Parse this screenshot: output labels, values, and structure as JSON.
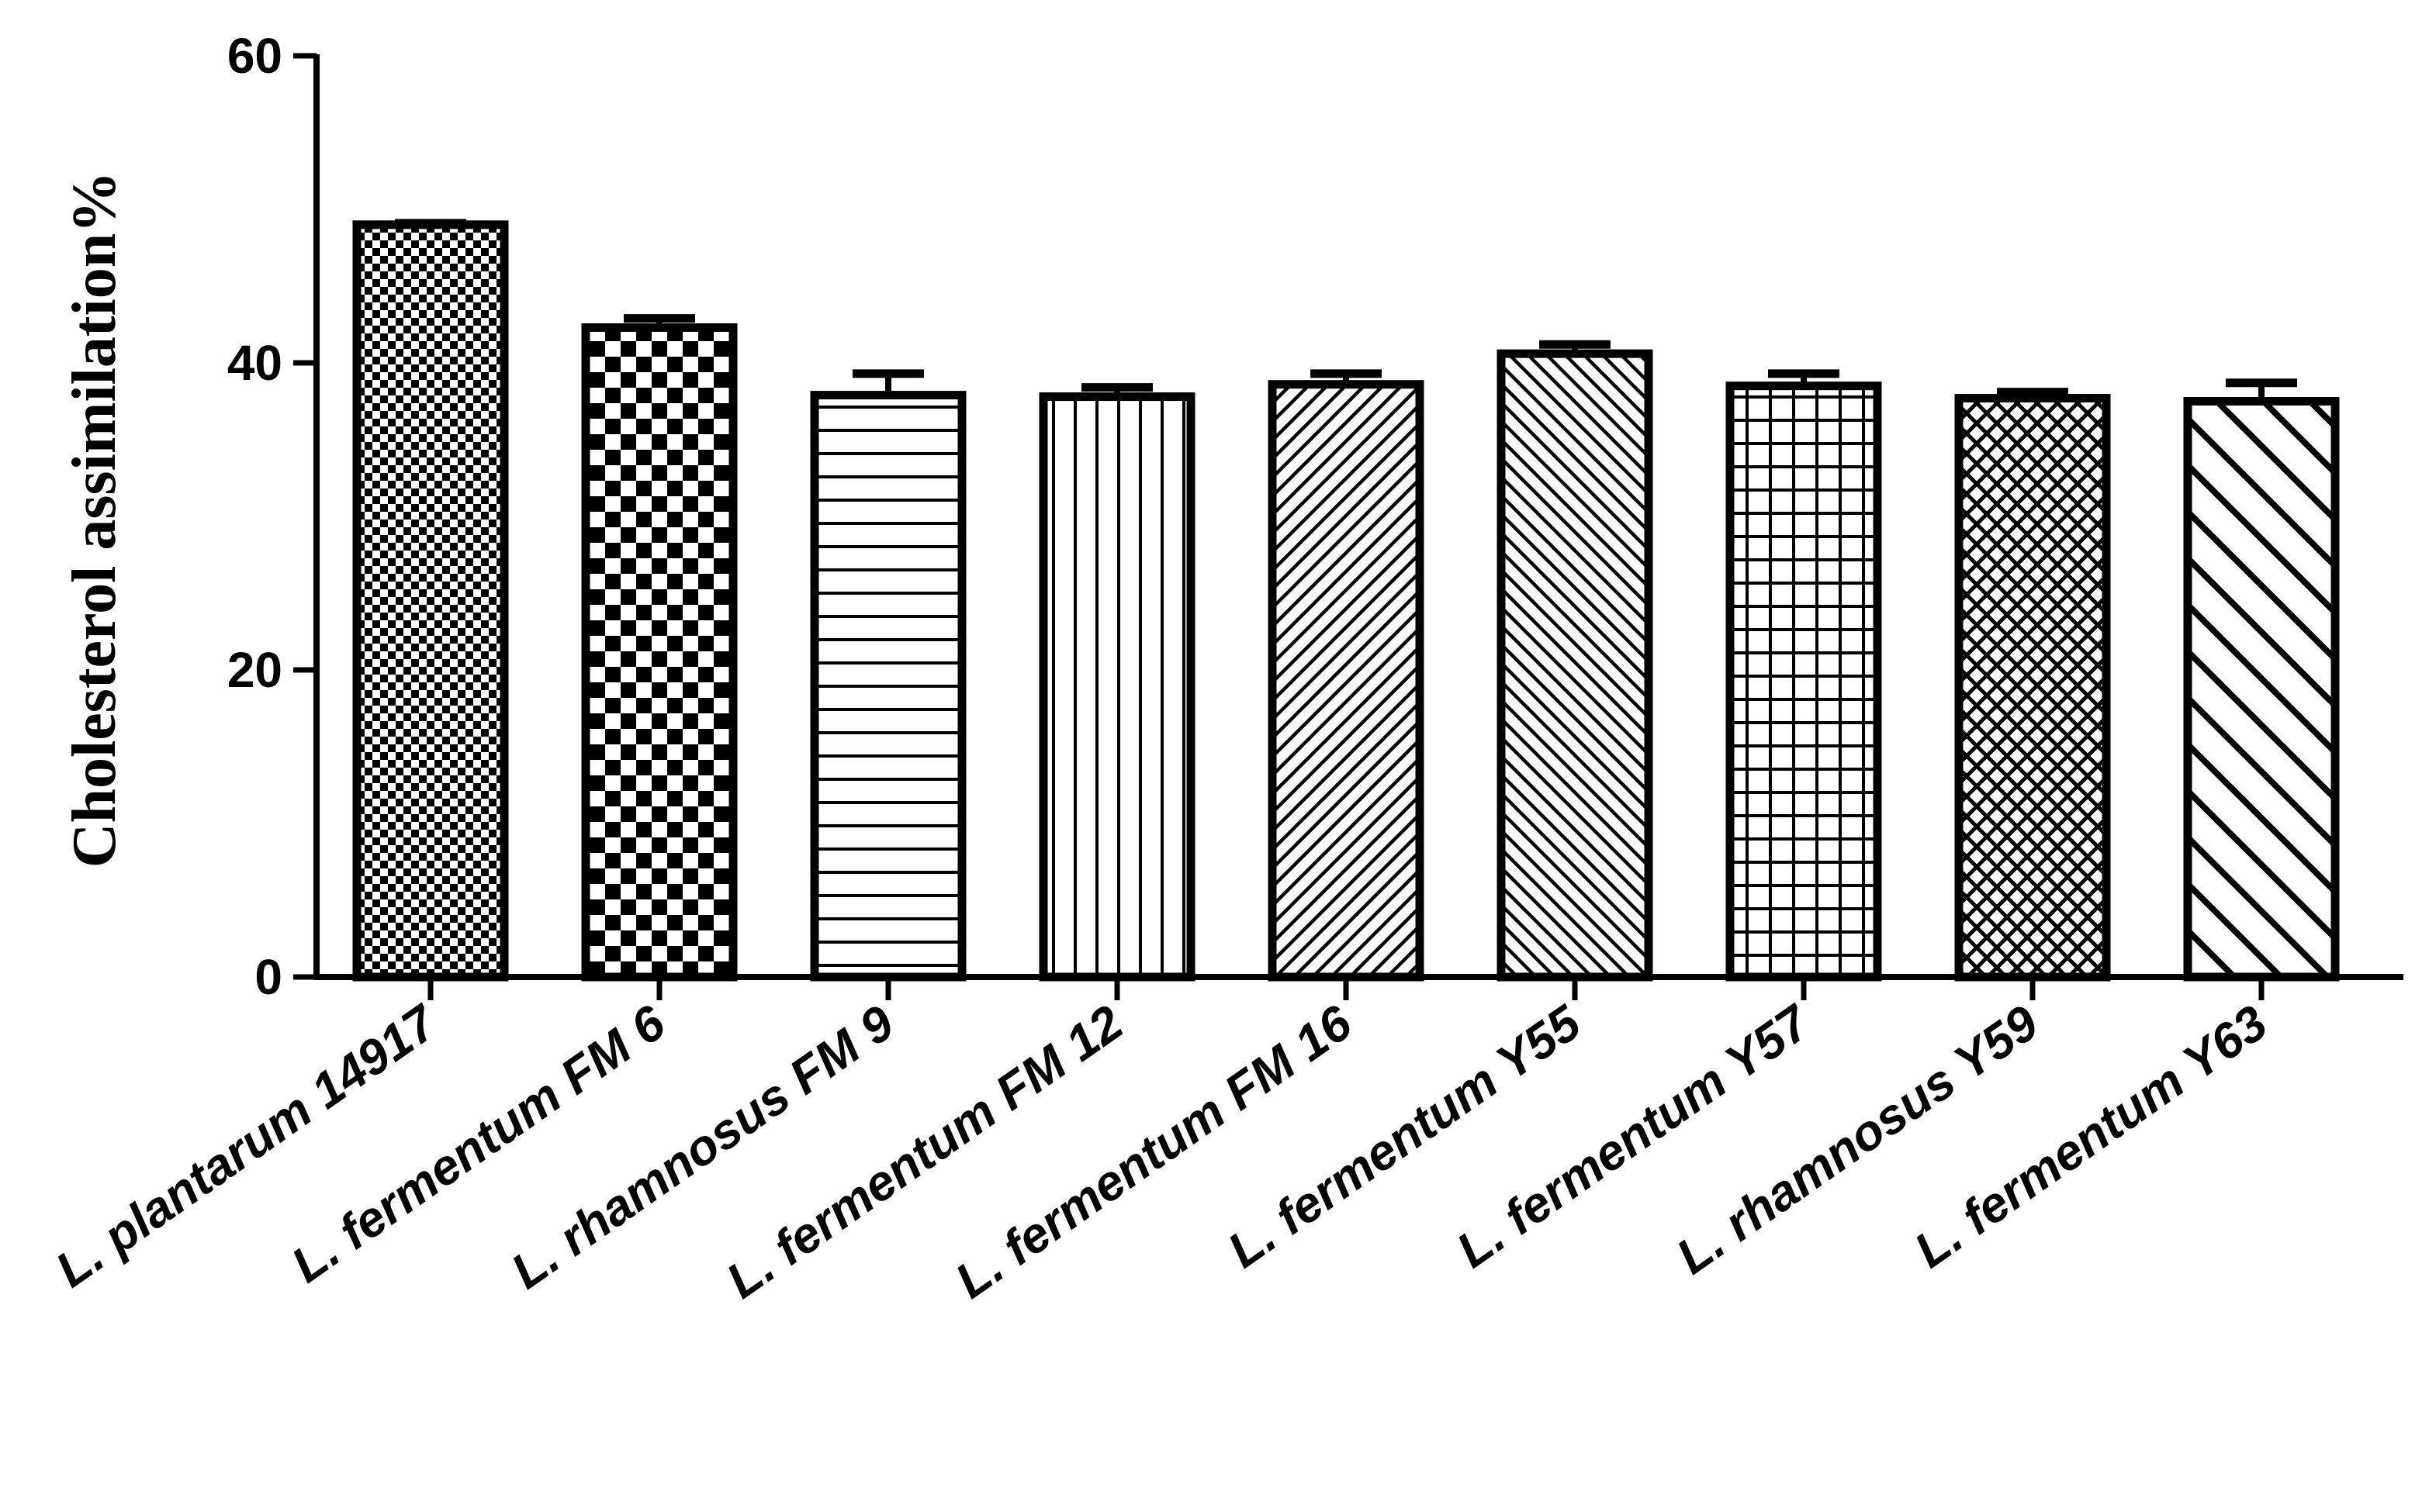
{
  "chart_data": {
    "type": "bar",
    "title": "",
    "xlabel": "",
    "ylabel": "Cholesterol assimilation%",
    "ylim": [
      0,
      60
    ],
    "yticks": [
      0,
      20,
      40,
      60
    ],
    "ytick_labels": [
      "0",
      "20",
      "40",
      "60"
    ],
    "grid": false,
    "legend": "none",
    "categories": [
      "L. plantarum 14917",
      "L. fermentum FM 6",
      "L. rhamnosus FM 9",
      "L. fermentum FM 12",
      "L. fermentum FM 16",
      "L. fermentum Y55",
      "L. fermentum Y57",
      "L. rhamnosus Y59",
      "L. fermentum Y63"
    ],
    "values": [
      49.0,
      42.3,
      37.9,
      37.8,
      38.6,
      40.6,
      38.5,
      37.7,
      37.5
    ],
    "errors": [
      0.1,
      0.6,
      1.4,
      0.6,
      0.7,
      0.6,
      0.8,
      0.4,
      1.2
    ],
    "patterns": [
      "fine-checker",
      "coarse-checker",
      "horizontal-lines",
      "vertical-lines",
      "diagonal-up",
      "diagonal-down",
      "grid",
      "diamond-crosshatch",
      "wide-diagonal-down"
    ],
    "colors": {
      "ink": "#000000",
      "background": "#ffffff"
    }
  }
}
